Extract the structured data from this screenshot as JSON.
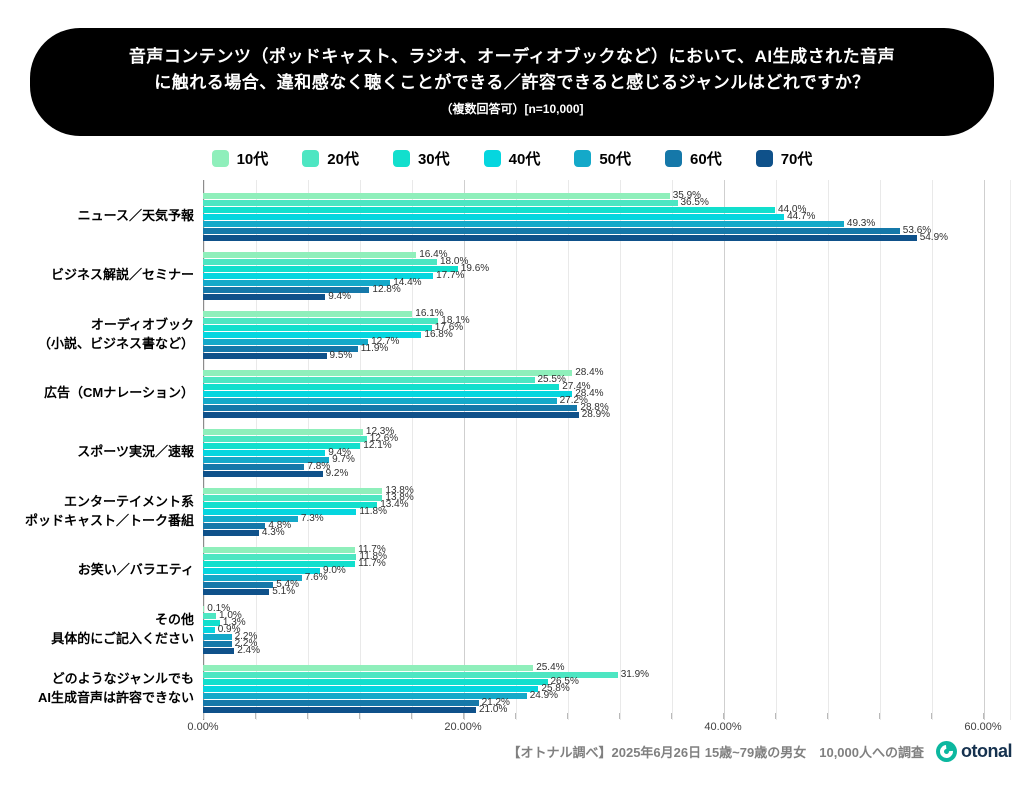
{
  "title": {
    "line1": "音声コンテンツ（ポッドキャスト、ラジオ、オーディオブックなど）において、AI生成された音声",
    "line2": "に触れる場合、違和感なく聴くことができる／許容できると感じるジャンルはどれですか？",
    "line3": "（複数回答可）[n=10,000]"
  },
  "chart_data": {
    "type": "bar",
    "orientation": "horizontal",
    "unit": "%",
    "xlim": [
      0,
      60
    ],
    "grid_minor_step_pct": 4,
    "x_ticks": [
      {
        "label": "0.00%",
        "value": 0
      },
      {
        "label": "20.00%",
        "value": 20
      },
      {
        "label": "40.00%",
        "value": 40
      },
      {
        "label": "60.00%",
        "value": 60
      }
    ],
    "legend_position": "top",
    "series_names": [
      "10代",
      "20代",
      "30代",
      "40代",
      "50代",
      "60代",
      "70代"
    ],
    "series_colors": [
      "#8FEFBB",
      "#4DE6C2",
      "#12DFCD",
      "#05D6DF",
      "#14A9C9",
      "#1578A9",
      "#0F518A"
    ],
    "categories": [
      {
        "label": [
          "ニュース／天気予報"
        ],
        "values": [
          35.9,
          36.5,
          44.0,
          44.7,
          49.3,
          53.6,
          54.9
        ]
      },
      {
        "label": [
          "ビジネス解説／セミナー"
        ],
        "values": [
          16.4,
          18.0,
          19.6,
          17.7,
          14.4,
          12.8,
          9.4
        ]
      },
      {
        "label": [
          "オーディオブック",
          "（小説、ビジネス書など）"
        ],
        "values": [
          16.1,
          18.1,
          17.6,
          16.8,
          12.7,
          11.9,
          9.5
        ]
      },
      {
        "label": [
          "広告（CMナレーション）"
        ],
        "values": [
          28.4,
          25.5,
          27.4,
          28.4,
          27.2,
          28.8,
          28.9
        ]
      },
      {
        "label": [
          "スポーツ実況／速報"
        ],
        "values": [
          12.3,
          12.6,
          12.1,
          9.4,
          9.7,
          7.8,
          9.2
        ]
      },
      {
        "label": [
          "エンターテイメント系",
          "ポッドキャスト／トーク番組"
        ],
        "values": [
          13.8,
          13.8,
          13.4,
          11.8,
          7.3,
          4.8,
          4.3
        ]
      },
      {
        "label": [
          "お笑い／バラエティ"
        ],
        "values": [
          11.7,
          11.8,
          11.7,
          9.0,
          7.6,
          5.4,
          5.1
        ]
      },
      {
        "label": [
          "その他",
          "具体的にご記入ください"
        ],
        "values": [
          0.1,
          1.0,
          1.3,
          0.9,
          2.2,
          2.2,
          2.4
        ]
      },
      {
        "label": [
          "どのようなジャンルでも",
          "AI生成音声は許容できない"
        ],
        "values": [
          25.4,
          31.9,
          26.5,
          25.8,
          24.9,
          21.2,
          21.0
        ]
      }
    ]
  },
  "footer": {
    "source": "【オトナル調べ】2025年6月26日 15歳~79歳の男女　10,000人への調査",
    "logo_text": "otonal",
    "logo_color": "#0CB79F"
  }
}
